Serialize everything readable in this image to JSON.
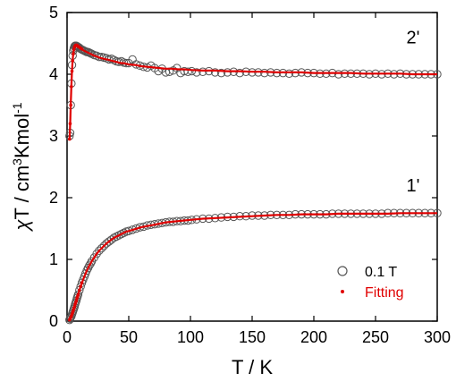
{
  "chart_data": {
    "type": "scatter",
    "xlabel": "T / K",
    "ylabel": {
      "part1": "χ",
      "part2": "T / cm",
      "sup1": "3",
      "part3": "Kmol",
      "sup2": "-1"
    },
    "xlim": [
      0,
      300
    ],
    "ylim": [
      0,
      5
    ],
    "xticks": [
      "0",
      "50",
      "100",
      "150",
      "200",
      "250",
      "300"
    ],
    "yticks": [
      "0",
      "1",
      "2",
      "3",
      "4",
      "5"
    ],
    "grid": false,
    "legend_position": "bottom-right",
    "colors": {
      "measured": "#555555",
      "fitting": "#e00000"
    },
    "curve_labels": [
      {
        "text": "2'",
        "near_x": 275,
        "near_y": 4.5
      },
      {
        "text": "1'",
        "near_x": 275,
        "near_y": 2.1
      }
    ],
    "series": [
      {
        "name": "0.1 T",
        "marker": "open-circle",
        "groups": [
          {
            "label": "2'",
            "x": [
              2,
              2.5,
              3,
              3.5,
              4,
              4.5,
              5,
              5.5,
              6,
              6.5,
              7,
              7.5,
              8,
              8.5,
              9,
              10,
              11,
              12,
              13,
              14,
              15,
              16,
              17,
              18,
              19,
              20,
              22,
              24,
              26,
              28,
              30,
              32,
              34,
              36,
              38,
              40,
              42,
              44,
              46,
              48,
              50,
              53,
              56,
              59,
              62,
              65,
              68,
              71,
              74,
              77,
              80,
              83,
              86,
              89,
              92,
              95,
              98,
              101,
              105,
              110,
              115,
              120,
              125,
              130,
              135,
              140,
              145,
              150,
              155,
              160,
              165,
              170,
              175,
              180,
              185,
              190,
              195,
              200,
              205,
              210,
              215,
              220,
              225,
              230,
              235,
              240,
              245,
              250,
              255,
              260,
              265,
              270,
              275,
              280,
              285,
              290,
              295,
              300
            ],
            "y": [
              3.0,
              3.05,
              3.5,
              3.85,
              4.15,
              4.3,
              4.38,
              4.42,
              4.45,
              4.46,
              4.46,
              4.46,
              4.45,
              4.45,
              4.44,
              4.43,
              4.41,
              4.4,
              4.39,
              4.38,
              4.37,
              4.36,
              4.36,
              4.35,
              4.34,
              4.33,
              4.31,
              4.3,
              4.28,
              4.28,
              4.27,
              4.26,
              4.24,
              4.25,
              4.23,
              4.21,
              4.2,
              4.21,
              4.19,
              4.18,
              4.18,
              4.24,
              4.16,
              4.14,
              4.12,
              4.11,
              4.14,
              4.1,
              4.05,
              4.09,
              4.03,
              4.04,
              4.06,
              4.1,
              4.02,
              4.05,
              4.04,
              4.05,
              4.03,
              4.04,
              4.05,
              4.03,
              4.02,
              4.03,
              4.04,
              4.02,
              4.04,
              4.03,
              4.03,
              4.02,
              4.03,
              4.02,
              4.02,
              4.01,
              4.02,
              4.03,
              4.02,
              4.02,
              4.01,
              4.01,
              4.02,
              4.0,
              4.01,
              4.01,
              4.01,
              4.01,
              4.0,
              4.01,
              4.0,
              4.01,
              4.0,
              4.01,
              4.0,
              4.0,
              4.0,
              4.0,
              4.0,
              4.0
            ]
          },
          {
            "label": "1'",
            "x": [
              2,
              2.5,
              3,
              3.5,
              4,
              4.5,
              5,
              5.5,
              6,
              6.5,
              7,
              7.5,
              8,
              8.5,
              9,
              10,
              11,
              12,
              13,
              14,
              15,
              16,
              17,
              18,
              19,
              20,
              22,
              24,
              26,
              28,
              30,
              32,
              34,
              36,
              38,
              40,
              42,
              44,
              46,
              48,
              50,
              53,
              56,
              59,
              62,
              65,
              68,
              71,
              74,
              77,
              80,
              83,
              86,
              89,
              92,
              95,
              98,
              101,
              105,
              110,
              115,
              120,
              125,
              130,
              135,
              140,
              145,
              150,
              155,
              160,
              165,
              170,
              175,
              180,
              185,
              190,
              195,
              200,
              205,
              210,
              215,
              220,
              225,
              230,
              235,
              240,
              245,
              250,
              255,
              260,
              265,
              270,
              275,
              280,
              285,
              290,
              295,
              300
            ],
            "y": [
              0.02,
              0.04,
              0.06,
              0.08,
              0.11,
              0.14,
              0.17,
              0.2,
              0.23,
              0.27,
              0.3,
              0.33,
              0.37,
              0.4,
              0.43,
              0.5,
              0.56,
              0.62,
              0.67,
              0.72,
              0.77,
              0.82,
              0.86,
              0.9,
              0.93,
              0.97,
              1.03,
              1.09,
              1.14,
              1.18,
              1.22,
              1.26,
              1.29,
              1.32,
              1.35,
              1.37,
              1.39,
              1.41,
              1.43,
              1.45,
              1.46,
              1.48,
              1.5,
              1.52,
              1.53,
              1.55,
              1.56,
              1.57,
              1.58,
              1.59,
              1.6,
              1.61,
              1.61,
              1.62,
              1.62,
              1.63,
              1.63,
              1.64,
              1.65,
              1.66,
              1.66,
              1.67,
              1.68,
              1.69,
              1.69,
              1.7,
              1.7,
              1.71,
              1.71,
              1.71,
              1.72,
              1.72,
              1.72,
              1.72,
              1.73,
              1.73,
              1.73,
              1.73,
              1.73,
              1.73,
              1.74,
              1.74,
              1.74,
              1.74,
              1.74,
              1.74,
              1.74,
              1.74,
              1.74,
              1.75,
              1.75,
              1.75,
              1.75,
              1.75,
              1.75,
              1.75,
              1.75,
              1.75
            ]
          }
        ]
      },
      {
        "name": "Fitting",
        "marker": "red-dot",
        "groups": [
          {
            "label": "2'",
            "x": [
              2,
              2.5,
              3,
              3.5,
              4,
              4.5,
              5,
              5.5,
              6,
              6.5,
              7,
              7.5,
              8,
              8.5,
              9,
              10,
              11,
              12,
              13,
              14,
              15,
              16,
              17,
              18,
              19,
              20,
              22,
              24,
              26,
              28,
              30,
              32,
              34,
              36,
              38,
              40,
              42,
              44,
              46,
              48,
              50,
              55,
              60,
              65,
              70,
              75,
              80,
              85,
              90,
              95,
              100,
              110,
              120,
              130,
              140,
              150,
              160,
              170,
              180,
              190,
              200,
              210,
              220,
              230,
              240,
              250,
              260,
              270,
              280,
              290,
              300
            ],
            "y": [
              2.95,
              3.2,
              3.5,
              3.8,
              4.05,
              4.22,
              4.33,
              4.4,
              4.44,
              4.46,
              4.47,
              4.47,
              4.47,
              4.46,
              4.45,
              4.44,
              4.42,
              4.41,
              4.39,
              4.38,
              4.37,
              4.36,
              4.35,
              4.34,
              4.33,
              4.32,
              4.3,
              4.29,
              4.27,
              4.26,
              4.25,
              4.24,
              4.23,
              4.22,
              4.21,
              4.2,
              4.19,
              4.18,
              4.18,
              4.17,
              4.16,
              4.15,
              4.13,
              4.12,
              4.11,
              4.1,
              4.09,
              4.09,
              4.08,
              4.08,
              4.07,
              4.06,
              4.06,
              4.05,
              4.05,
              4.04,
              4.04,
              4.03,
              4.03,
              4.03,
              4.02,
              4.02,
              4.02,
              4.02,
              4.01,
              4.01,
              4.01,
              4.01,
              4.0,
              4.0,
              4.0
            ]
          },
          {
            "label": "1'",
            "x": [
              2,
              2.5,
              3,
              3.5,
              4,
              4.5,
              5,
              5.5,
              6,
              6.5,
              7,
              7.5,
              8,
              8.5,
              9,
              10,
              11,
              12,
              13,
              14,
              15,
              16,
              17,
              18,
              19,
              20,
              22,
              24,
              26,
              28,
              30,
              32,
              34,
              36,
              38,
              40,
              42,
              44,
              46,
              48,
              50,
              55,
              60,
              65,
              70,
              75,
              80,
              85,
              90,
              95,
              100,
              110,
              120,
              130,
              140,
              150,
              160,
              170,
              180,
              190,
              200,
              210,
              220,
              230,
              240,
              250,
              260,
              270,
              280,
              290,
              300
            ],
            "y": [
              0.02,
              0.04,
              0.06,
              0.08,
              0.11,
              0.14,
              0.17,
              0.2,
              0.23,
              0.27,
              0.3,
              0.33,
              0.37,
              0.4,
              0.43,
              0.5,
              0.56,
              0.62,
              0.67,
              0.72,
              0.77,
              0.82,
              0.86,
              0.9,
              0.93,
              0.97,
              1.03,
              1.09,
              1.14,
              1.18,
              1.22,
              1.26,
              1.29,
              1.32,
              1.35,
              1.37,
              1.39,
              1.41,
              1.43,
              1.45,
              1.46,
              1.49,
              1.52,
              1.54,
              1.56,
              1.58,
              1.6,
              1.61,
              1.62,
              1.63,
              1.64,
              1.66,
              1.67,
              1.68,
              1.69,
              1.7,
              1.71,
              1.72,
              1.72,
              1.73,
              1.73,
              1.73,
              1.74,
              1.74,
              1.74,
              1.74,
              1.74,
              1.75,
              1.75,
              1.75,
              1.75
            ]
          }
        ]
      }
    ]
  }
}
